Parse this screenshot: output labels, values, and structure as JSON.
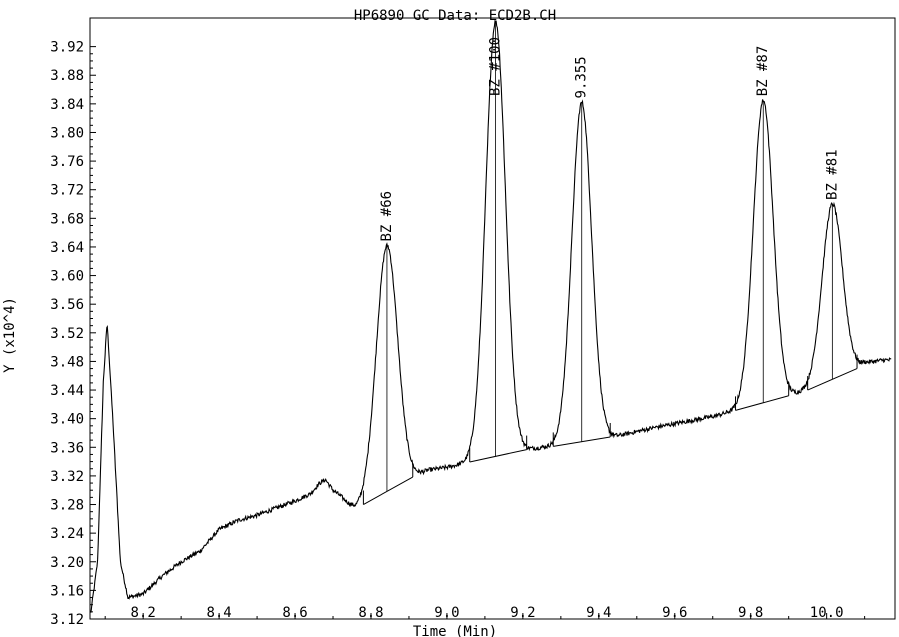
{
  "chart_data": {
    "type": "line",
    "title": "HP6890 GC Data: ECD2B.CH",
    "xlabel": "Time (Min)",
    "ylabel": "Y (x10^4)",
    "xlim": [
      8.06,
      10.18
    ],
    "ylim": [
      3.12,
      3.96
    ],
    "x_ticks": [
      "8.2",
      "8.4",
      "8.6",
      "8.8",
      "9.0",
      "9.2",
      "9.4",
      "9.6",
      "9.8",
      "10.0"
    ],
    "y_ticks": [
      "3.12",
      "3.16",
      "3.20",
      "3.24",
      "3.28",
      "3.32",
      "3.36",
      "3.40",
      "3.44",
      "3.48",
      "3.52",
      "3.56",
      "3.60",
      "3.64",
      "3.68",
      "3.72",
      "3.76",
      "3.80",
      "3.84",
      "3.88",
      "3.92"
    ],
    "grid": false,
    "baseline": {
      "x": [
        8.06,
        8.08,
        8.095,
        8.105,
        8.12,
        8.14,
        8.16,
        8.2,
        8.25,
        8.3,
        8.35,
        8.4,
        8.45,
        8.5,
        8.55,
        8.6,
        8.64,
        8.665,
        8.68,
        8.7,
        8.72,
        8.74,
        8.76,
        8.78,
        8.8,
        8.85,
        8.9,
        8.95,
        9.0,
        9.05,
        9.1,
        9.15,
        9.2,
        9.25,
        9.3,
        9.35,
        9.4,
        9.45,
        9.5,
        9.55,
        9.6,
        9.65,
        9.7,
        9.75,
        9.8,
        9.85,
        9.9,
        9.95,
        10.0,
        10.05,
        10.1,
        10.15,
        10.17
      ],
      "y": [
        3.12,
        3.2,
        3.45,
        3.535,
        3.4,
        3.2,
        3.15,
        3.155,
        3.18,
        3.2,
        3.215,
        3.245,
        3.258,
        3.265,
        3.275,
        3.285,
        3.295,
        3.31,
        3.315,
        3.3,
        3.292,
        3.282,
        3.275,
        3.28,
        3.287,
        3.3,
        3.316,
        3.328,
        3.332,
        3.338,
        3.345,
        3.352,
        3.356,
        3.36,
        3.362,
        3.368,
        3.372,
        3.376,
        3.382,
        3.388,
        3.393,
        3.398,
        3.403,
        3.41,
        3.418,
        3.425,
        3.432,
        3.44,
        3.448,
        3.458,
        3.478,
        3.482,
        3.482
      ]
    },
    "peaks": [
      {
        "label": "BZ #66",
        "rt": 8.842,
        "apex": 3.642,
        "width": 0.028,
        "start": 8.78,
        "end": 8.91
      },
      {
        "label": "BZ #100",
        "rt": 9.128,
        "apex": 3.955,
        "width": 0.026,
        "start": 9.06,
        "end": 9.21
      },
      {
        "label": "9.355",
        "rt": 9.355,
        "apex": 3.842,
        "width": 0.026,
        "start": 9.28,
        "end": 9.43
      },
      {
        "label": "BZ #87",
        "rt": 9.833,
        "apex": 3.845,
        "width": 0.026,
        "start": 9.76,
        "end": 9.9
      },
      {
        "label": "BZ #81",
        "rt": 10.015,
        "apex": 3.7,
        "width": 0.027,
        "start": 9.95,
        "end": 10.08
      }
    ]
  }
}
